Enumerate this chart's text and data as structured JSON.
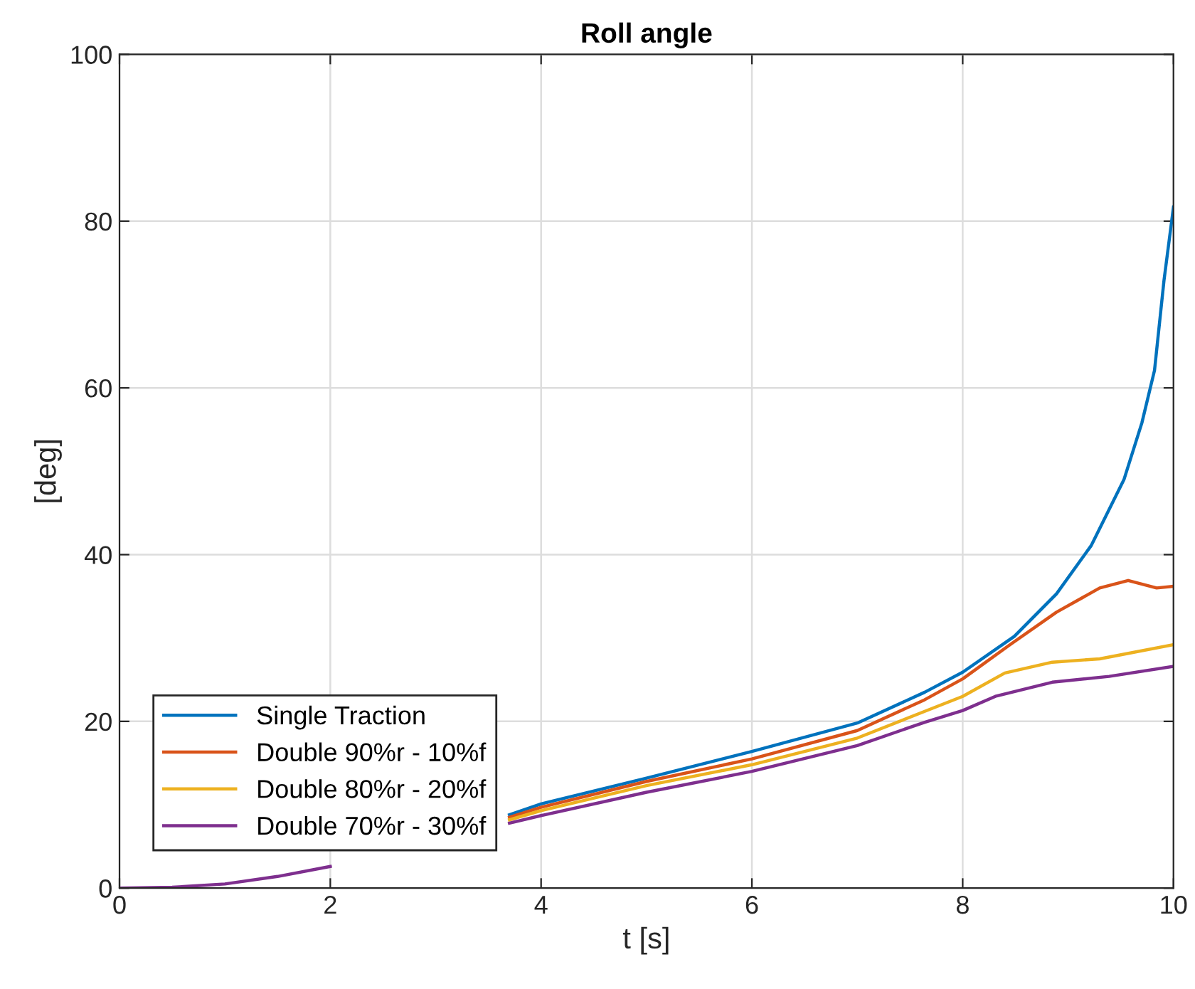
{
  "chart_data": {
    "type": "line",
    "title": "Roll angle",
    "xlabel": "t [s]",
    "ylabel": "[deg]",
    "xlim": [
      0,
      10
    ],
    "xticks": [
      0,
      2,
      4,
      6,
      8,
      10
    ],
    "ylim": [
      0,
      100
    ],
    "yticks": [
      0,
      20,
      40,
      60,
      80,
      100
    ],
    "grid": true,
    "legend": "bottom left",
    "line_style": "solid",
    "series": [
      {
        "name": "Single Traction",
        "color": "#0072bd",
        "x": [
          3.7,
          4,
          5,
          6,
          7,
          7.64,
          8,
          8.49,
          8.89,
          9.22,
          9.53,
          9.7,
          9.82,
          9.91,
          10
        ],
        "values": [
          8.8,
          10.1,
          13.2,
          16.4,
          19.8,
          23.5,
          25.9,
          30.2,
          35.3,
          41.1,
          49.0,
          55.8,
          62.1,
          72.9,
          81.7
        ]
      },
      {
        "name": "Double 90%r - 10%f",
        "color": "#d95319",
        "x": [
          3.7,
          4,
          5,
          6,
          7,
          7.64,
          8,
          8.45,
          8.89,
          9.3,
          9.57,
          9.84,
          10
        ],
        "values": [
          8.5,
          9.7,
          12.8,
          15.5,
          18.9,
          22.6,
          25.1,
          29.2,
          33.1,
          36.0,
          36.9,
          36.0,
          36.2
        ]
      },
      {
        "name": "Double 80%r - 20%f",
        "color": "#edb120",
        "x": [
          3.7,
          4,
          5,
          6,
          7,
          7.64,
          8,
          8.4,
          8.85,
          9.3,
          10
        ],
        "values": [
          8.2,
          9.3,
          12.3,
          14.8,
          18.0,
          21.2,
          23.0,
          25.8,
          27.1,
          27.5,
          29.2
        ]
      },
      {
        "name": "Double 70%r - 30%f",
        "color": "#7e2f8e",
        "x": [
          0,
          0.5,
          1,
          1.5,
          2,
          2.9,
          3.7,
          4,
          5,
          6,
          7,
          7.64,
          8,
          8.31,
          8.85,
          9.39,
          10
        ],
        "values": [
          0,
          0.1,
          0.5,
          1.4,
          2.6,
          null,
          7.8,
          8.7,
          11.5,
          14.0,
          17.1,
          19.9,
          21.3,
          23.0,
          24.7,
          25.4,
          26.6
        ]
      }
    ]
  }
}
